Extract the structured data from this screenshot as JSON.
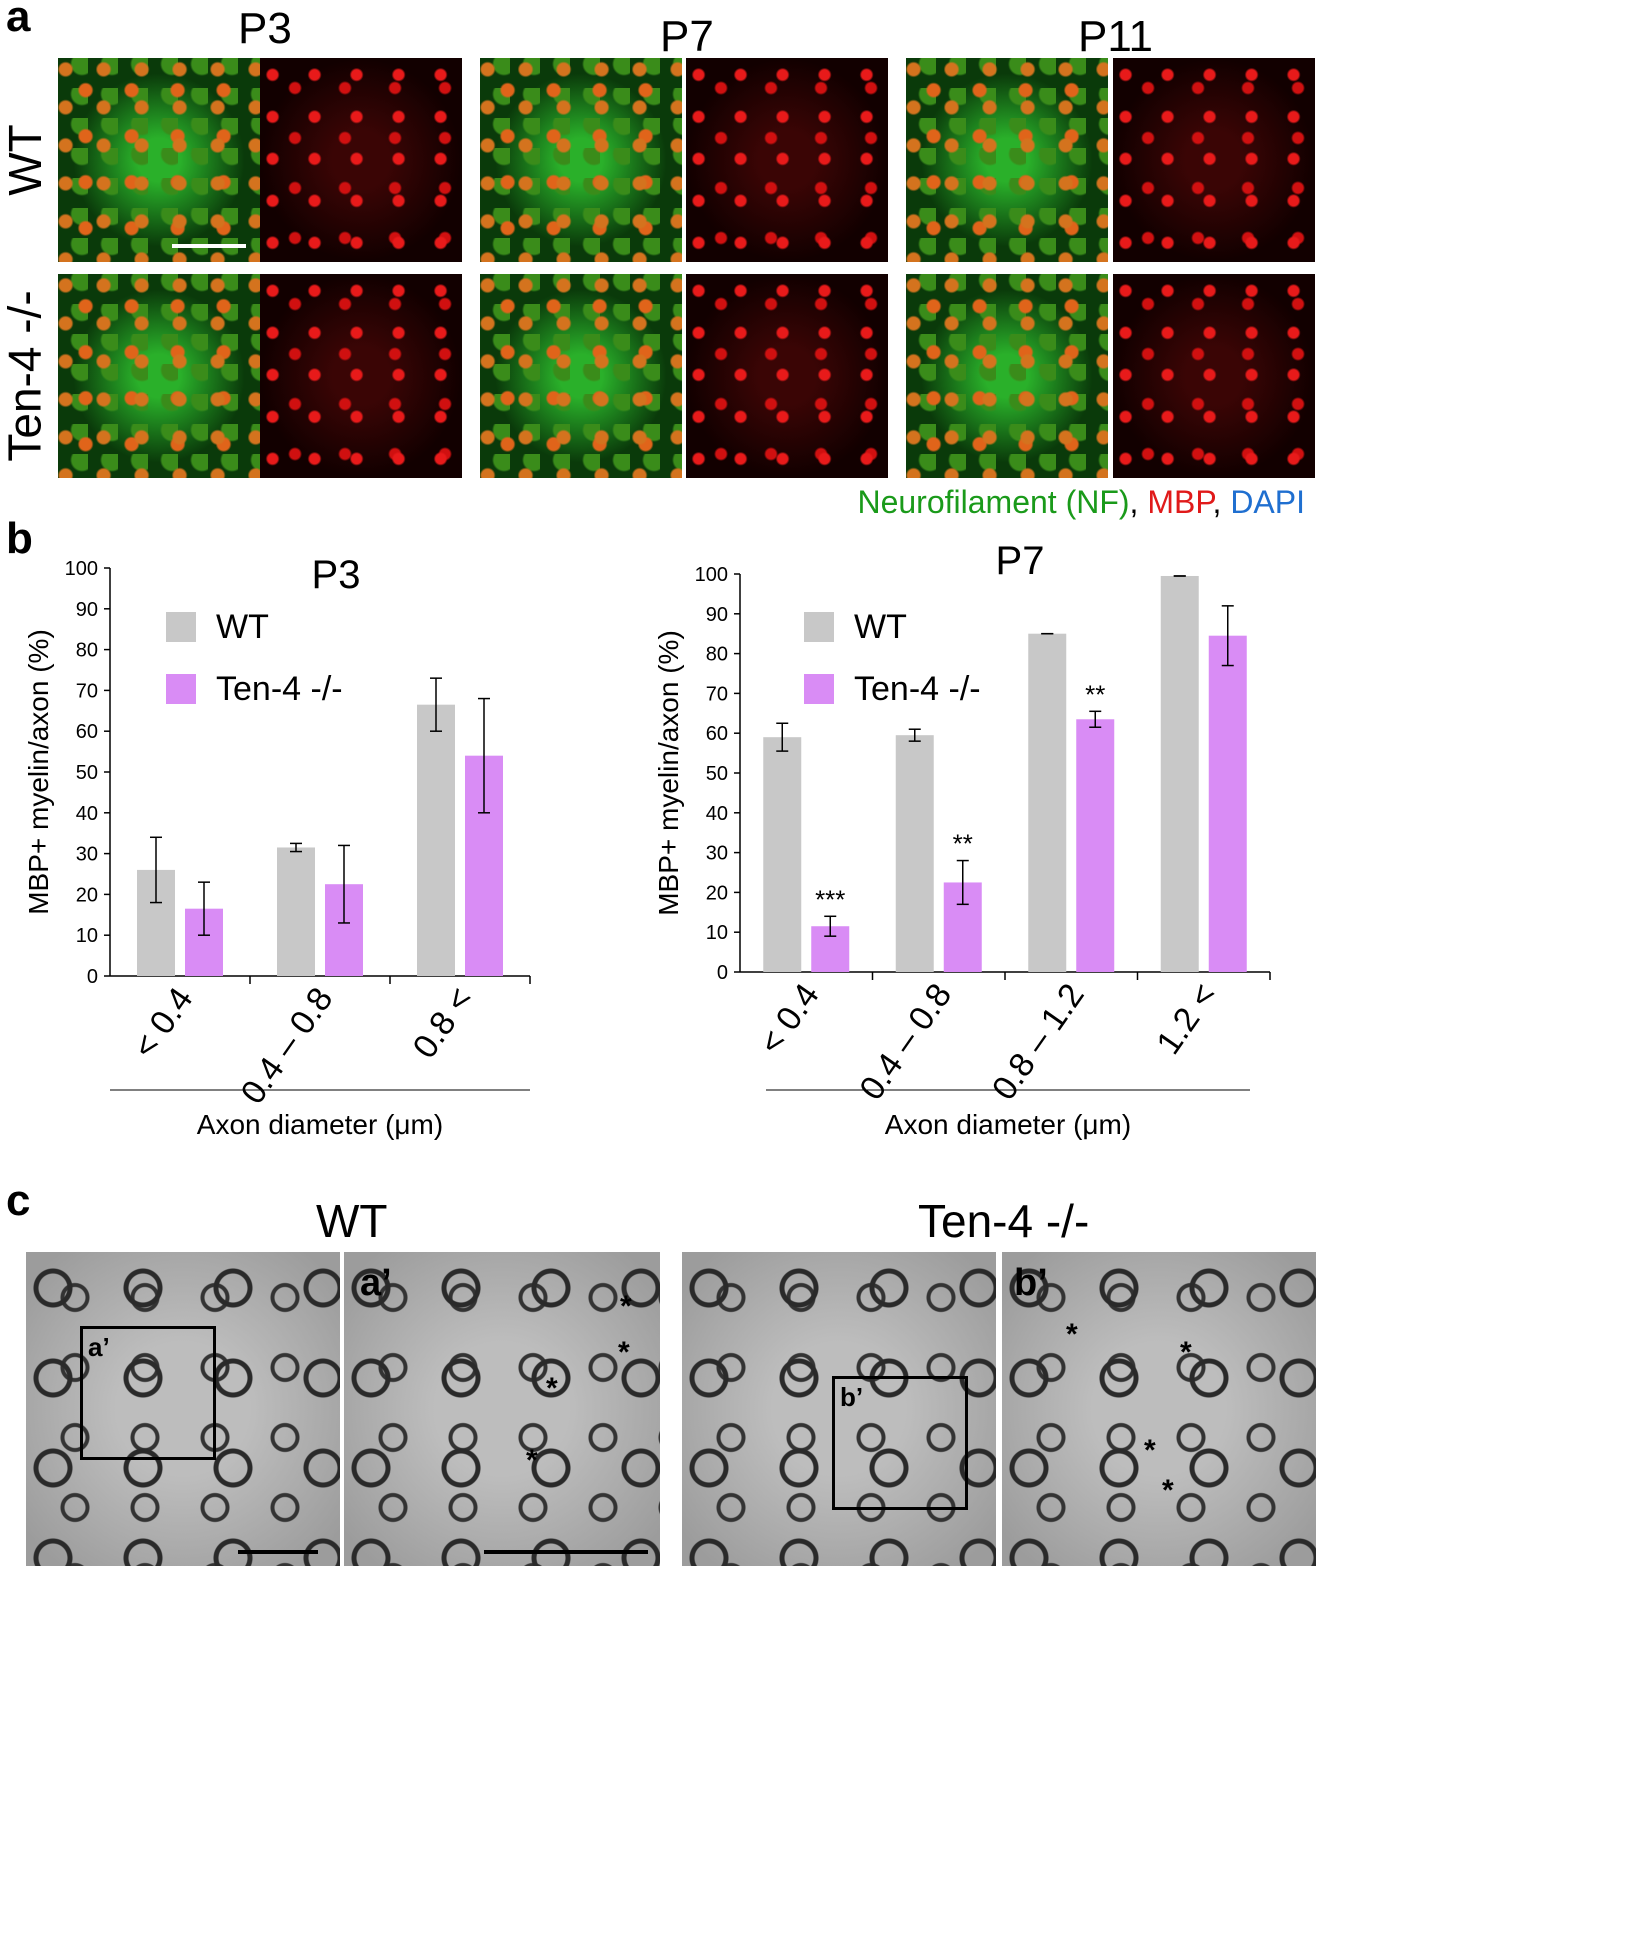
{
  "panel_a": {
    "letter": "a",
    "columns": [
      "P3",
      "P7",
      "P11"
    ],
    "rows": [
      "WT",
      "Ten-4 -/-"
    ],
    "stain_legend": {
      "nf": "Neurofilament (NF)",
      "sep1": ",",
      "mbp": "MBP",
      "sep2": ",",
      "dapi": "DAPI"
    },
    "colors": {
      "nf": "#1a9a1a",
      "mbp": "#e01a1a",
      "dapi": "#1f6fd0"
    }
  },
  "panel_b": {
    "letter": "b"
  },
  "chart_data": [
    {
      "type": "bar",
      "title": "P3",
      "ylabel": "MBP+ myelin/axon (%)",
      "xlabel": "Axon diameter (μm)",
      "ylim": [
        0,
        100
      ],
      "yticks": [
        0,
        10,
        20,
        30,
        40,
        50,
        60,
        70,
        80,
        90,
        100
      ],
      "categories": [
        "< 0.4",
        "0.4 – 0.8",
        "0.8 <"
      ],
      "series": [
        {
          "name": "WT",
          "color": "#c8c8c8",
          "values": [
            26,
            31.5,
            66.5
          ],
          "errors": [
            8,
            1,
            6.5
          ],
          "stars": [
            "",
            "",
            ""
          ]
        },
        {
          "name": "Ten-4 -/-",
          "color": "#d98cf5",
          "values": [
            16.5,
            22.5,
            54
          ],
          "errors": [
            6.5,
            9.5,
            14
          ],
          "stars": [
            "",
            "",
            ""
          ]
        }
      ],
      "legend": "top-left"
    },
    {
      "type": "bar",
      "title": "P7",
      "ylabel": "MBP+ myelin/axon (%)",
      "xlabel": "Axon diameter (μm)",
      "ylim": [
        0,
        100
      ],
      "yticks": [
        0,
        10,
        20,
        30,
        40,
        50,
        60,
        70,
        80,
        90,
        100
      ],
      "categories": [
        "< 0.4",
        "0.4 – 0.8",
        "0.8 – 1.2",
        "1.2 <"
      ],
      "series": [
        {
          "name": "WT",
          "color": "#c8c8c8",
          "values": [
            59,
            59.5,
            85,
            99.5
          ],
          "errors": [
            3.5,
            1.5,
            0,
            0
          ],
          "stars": [
            "",
            "",
            "",
            ""
          ]
        },
        {
          "name": "Ten-4 -/-",
          "color": "#d98cf5",
          "values": [
            11.5,
            22.5,
            63.5,
            84.5
          ],
          "errors": [
            2.5,
            5.5,
            2,
            7.5
          ],
          "stars": [
            "***",
            "**",
            "**",
            ""
          ]
        }
      ],
      "legend": "top-left"
    }
  ],
  "panel_c": {
    "letter": "c",
    "groups": [
      "WT",
      "Ten-4 -/-"
    ],
    "insets": [
      "a’",
      "b’"
    ],
    "asterisk": "*"
  }
}
